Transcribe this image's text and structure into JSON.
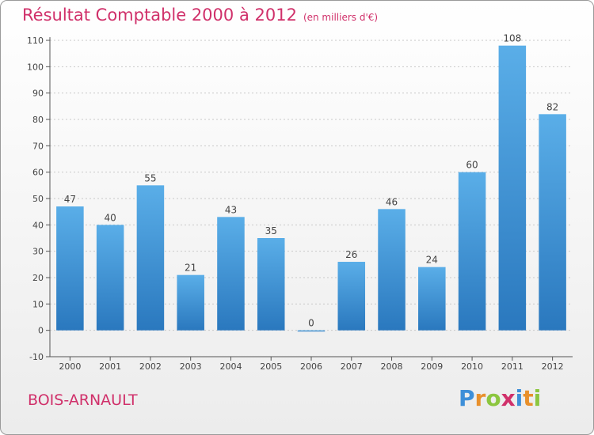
{
  "chart_data": {
    "type": "bar",
    "title": "Résultat Comptable 2000 à 2012",
    "subtitle": "(en milliers d'€)",
    "categories": [
      "2000",
      "2001",
      "2002",
      "2003",
      "2004",
      "2005",
      "2006",
      "2007",
      "2008",
      "2009",
      "2010",
      "2011",
      "2012"
    ],
    "values": [
      47,
      40,
      55,
      21,
      43,
      35,
      0,
      26,
      46,
      24,
      60,
      108,
      82
    ],
    "ylim": [
      -10,
      110
    ],
    "yticks": [
      -10,
      0,
      10,
      20,
      30,
      40,
      50,
      60,
      70,
      80,
      90,
      100,
      110
    ],
    "grid": true,
    "bar_color": "#3a8fd6"
  },
  "footer": {
    "town": "BOIS-ARNAULT",
    "logo_letters": [
      "P",
      "r",
      "o",
      "x",
      "i",
      "t",
      "i"
    ],
    "logo_colors": [
      "#3e8fd8",
      "#e8902c",
      "#8cc63f",
      "#d0306a",
      "#3e8fd8",
      "#e8902c",
      "#8cc63f"
    ]
  },
  "colors": {
    "title": "#d0306a",
    "axis": "#555555",
    "grid": "#c8c8c8"
  }
}
